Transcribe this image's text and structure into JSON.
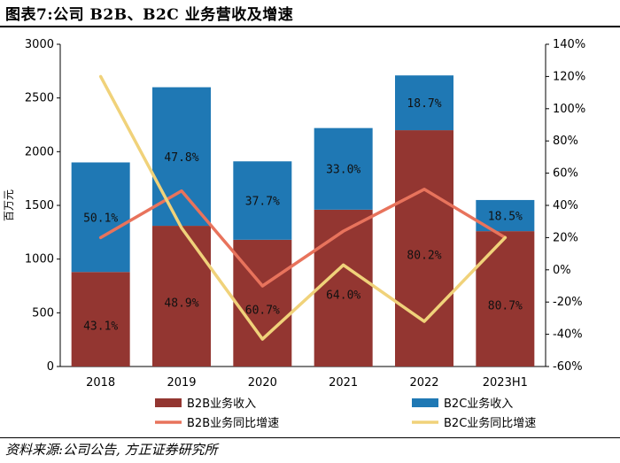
{
  "title": "图表7:公司 B2B、B2C 业务营收及增速",
  "source": "资料来源:公司公告, 方正证券研究所",
  "colors": {
    "b2b_bar": "#933631",
    "b2c_bar": "#1f78b4",
    "b2b_line": "#e8735c",
    "b2c_line": "#f0d27a"
  },
  "chart_data": {
    "type": "bar",
    "stacked": true,
    "categories": [
      "2018",
      "2019",
      "2020",
      "2021",
      "2022",
      "2023H1"
    ],
    "ylabel": "百万元",
    "ylim": [
      0,
      3000
    ],
    "yticks": [
      0,
      500,
      1000,
      1500,
      2000,
      2500,
      3000
    ],
    "y2lim": [
      -60,
      140
    ],
    "y2ticks": [
      "-60%",
      "-40%",
      "-20%",
      "0%",
      "20%",
      "40%",
      "60%",
      "80%",
      "100%",
      "120%",
      "140%"
    ],
    "y2tick_values": [
      -60,
      -40,
      -20,
      0,
      20,
      40,
      60,
      80,
      100,
      120,
      140
    ],
    "series": [
      {
        "name": "B2B业务收入",
        "kind": "bar",
        "axis": "left",
        "values": [
          880,
          1310,
          1180,
          1460,
          2200,
          1260
        ],
        "labels": [
          "43.1%",
          "48.9%",
          "60.7%",
          "64.0%",
          "80.2%",
          "80.7%"
        ]
      },
      {
        "name": "B2C业务收入",
        "kind": "bar",
        "axis": "left",
        "values": [
          1020,
          1290,
          730,
          760,
          510,
          290
        ],
        "labels": [
          "50.1%",
          "47.8%",
          "37.7%",
          "33.0%",
          "18.7%",
          "18.5%"
        ]
      },
      {
        "name": "B2B业务同比增速",
        "kind": "line",
        "axis": "right",
        "values": [
          20,
          49,
          -10,
          24,
          50,
          20
        ]
      },
      {
        "name": "B2C业务同比增速",
        "kind": "line",
        "axis": "right",
        "values": [
          120,
          26,
          -43,
          3,
          -32,
          20
        ]
      }
    ]
  }
}
